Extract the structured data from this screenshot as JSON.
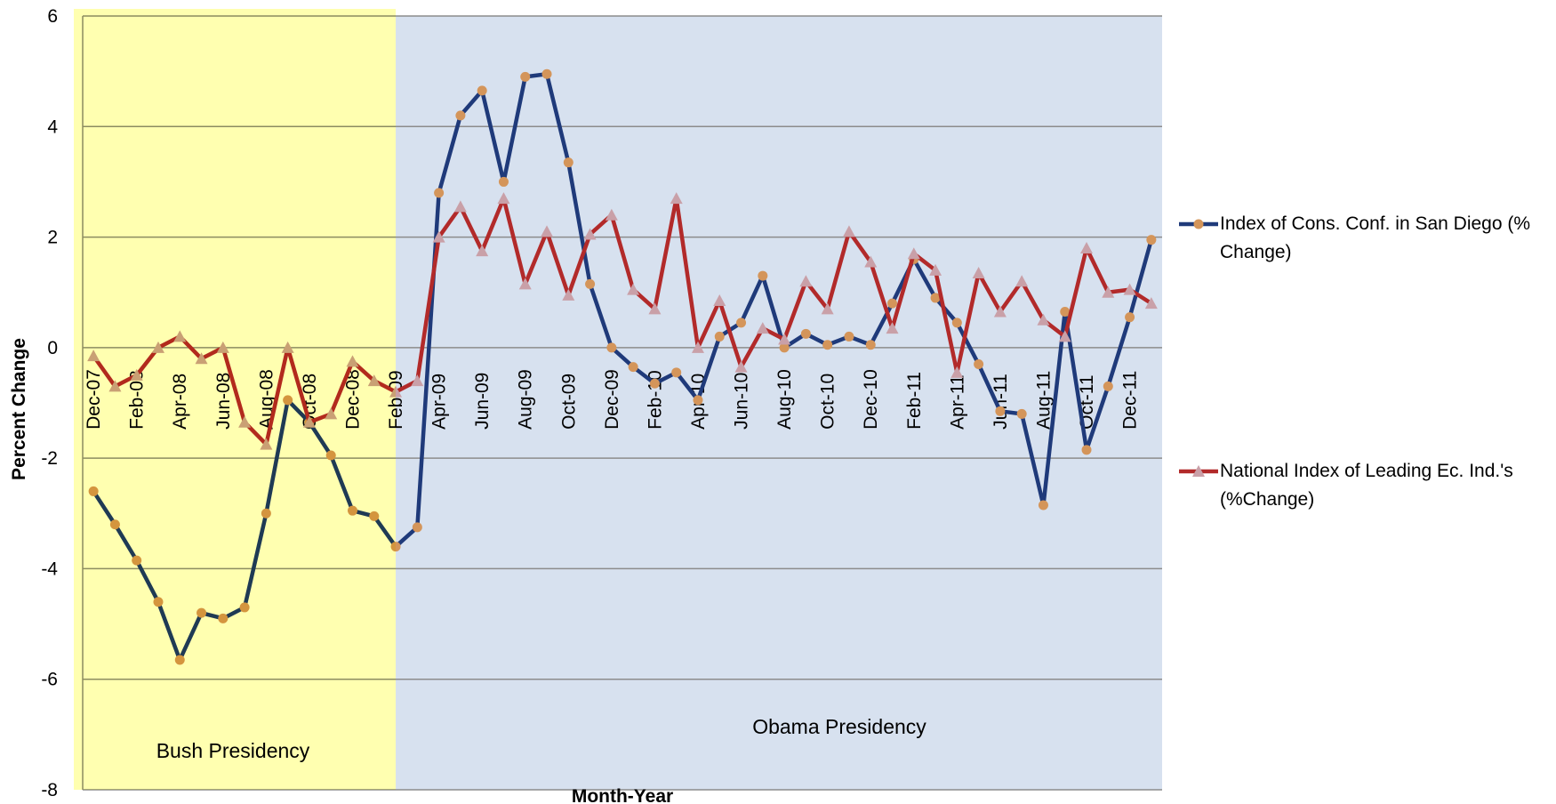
{
  "chart_data": {
    "type": "line",
    "x_label": "Month-Year",
    "y_label": "Percent Change",
    "categories": [
      "Dec-07",
      null,
      "Feb-08",
      null,
      "Apr-08",
      null,
      "Jun-08",
      null,
      "Aug-08",
      null,
      "Oct-08",
      null,
      "Dec-08",
      null,
      "Feb-09",
      null,
      "Apr-09",
      null,
      "Jun-09",
      null,
      "Aug-09",
      null,
      "Oct-09",
      null,
      "Dec-09",
      null,
      "Feb-10",
      null,
      "Apr-10",
      null,
      "Jun-10",
      null,
      "Aug-10",
      null,
      "Oct-10",
      null,
      "Dec-10",
      null,
      "Feb-11",
      null,
      "Apr-11",
      null,
      "Jun-11",
      null,
      "Aug-11",
      null,
      "Oct-11",
      null,
      "Dec-11",
      null
    ],
    "series": [
      {
        "name": "Index of Cons. Conf. in San Diego (% Change)",
        "color": "#1f3a7a",
        "marker_color": "#d4955a",
        "marker": "circle",
        "values": [
          -2.6,
          -3.2,
          -3.85,
          -4.6,
          -5.65,
          -4.8,
          -4.9,
          -4.7,
          -3.0,
          -0.95,
          -1.35,
          -1.95,
          -2.95,
          -3.05,
          -3.6,
          -3.25,
          2.8,
          4.2,
          4.65,
          3.0,
          4.9,
          4.95,
          3.35,
          1.15,
          0.0,
          -0.35,
          -0.65,
          -0.45,
          -0.95,
          0.2,
          0.45,
          1.3,
          0.0,
          0.25,
          0.05,
          0.2,
          0.05,
          0.8,
          1.6,
          0.9,
          0.45,
          -0.3,
          -1.15,
          -1.2,
          -2.85,
          0.65,
          -1.85,
          -0.7,
          0.55,
          1.95
        ]
      },
      {
        "name": "National Index of Leading Ec. Ind.'s (%Change)",
        "color": "#b22a2a",
        "marker_color": "#c9a0a8",
        "marker": "triangle",
        "values": [
          -0.15,
          -0.7,
          -0.5,
          0.0,
          0.2,
          -0.2,
          0.0,
          -1.35,
          -1.75,
          0.0,
          -1.35,
          -1.2,
          -0.25,
          -0.6,
          -0.8,
          -0.6,
          2.0,
          2.55,
          1.75,
          2.7,
          1.15,
          2.1,
          0.95,
          2.05,
          2.4,
          1.05,
          0.7,
          2.7,
          0.0,
          0.85,
          -0.35,
          0.35,
          0.15,
          1.2,
          0.7,
          2.1,
          1.55,
          0.35,
          1.7,
          1.4,
          -0.45,
          1.35,
          0.65,
          1.2,
          0.5,
          0.2,
          1.8,
          1.0,
          1.05,
          0.8
        ]
      }
    ],
    "annotations": [
      {
        "text": "Bush Presidency",
        "color": "#ffffb0"
      },
      {
        "text": "Obama  Presidency",
        "color": "#d7e1ef"
      }
    ],
    "ylim": [
      -8,
      6
    ],
    "yticks": [
      -8,
      -6,
      -4,
      -2,
      0,
      2,
      4,
      6
    ],
    "grid": true,
    "legend": "right"
  }
}
